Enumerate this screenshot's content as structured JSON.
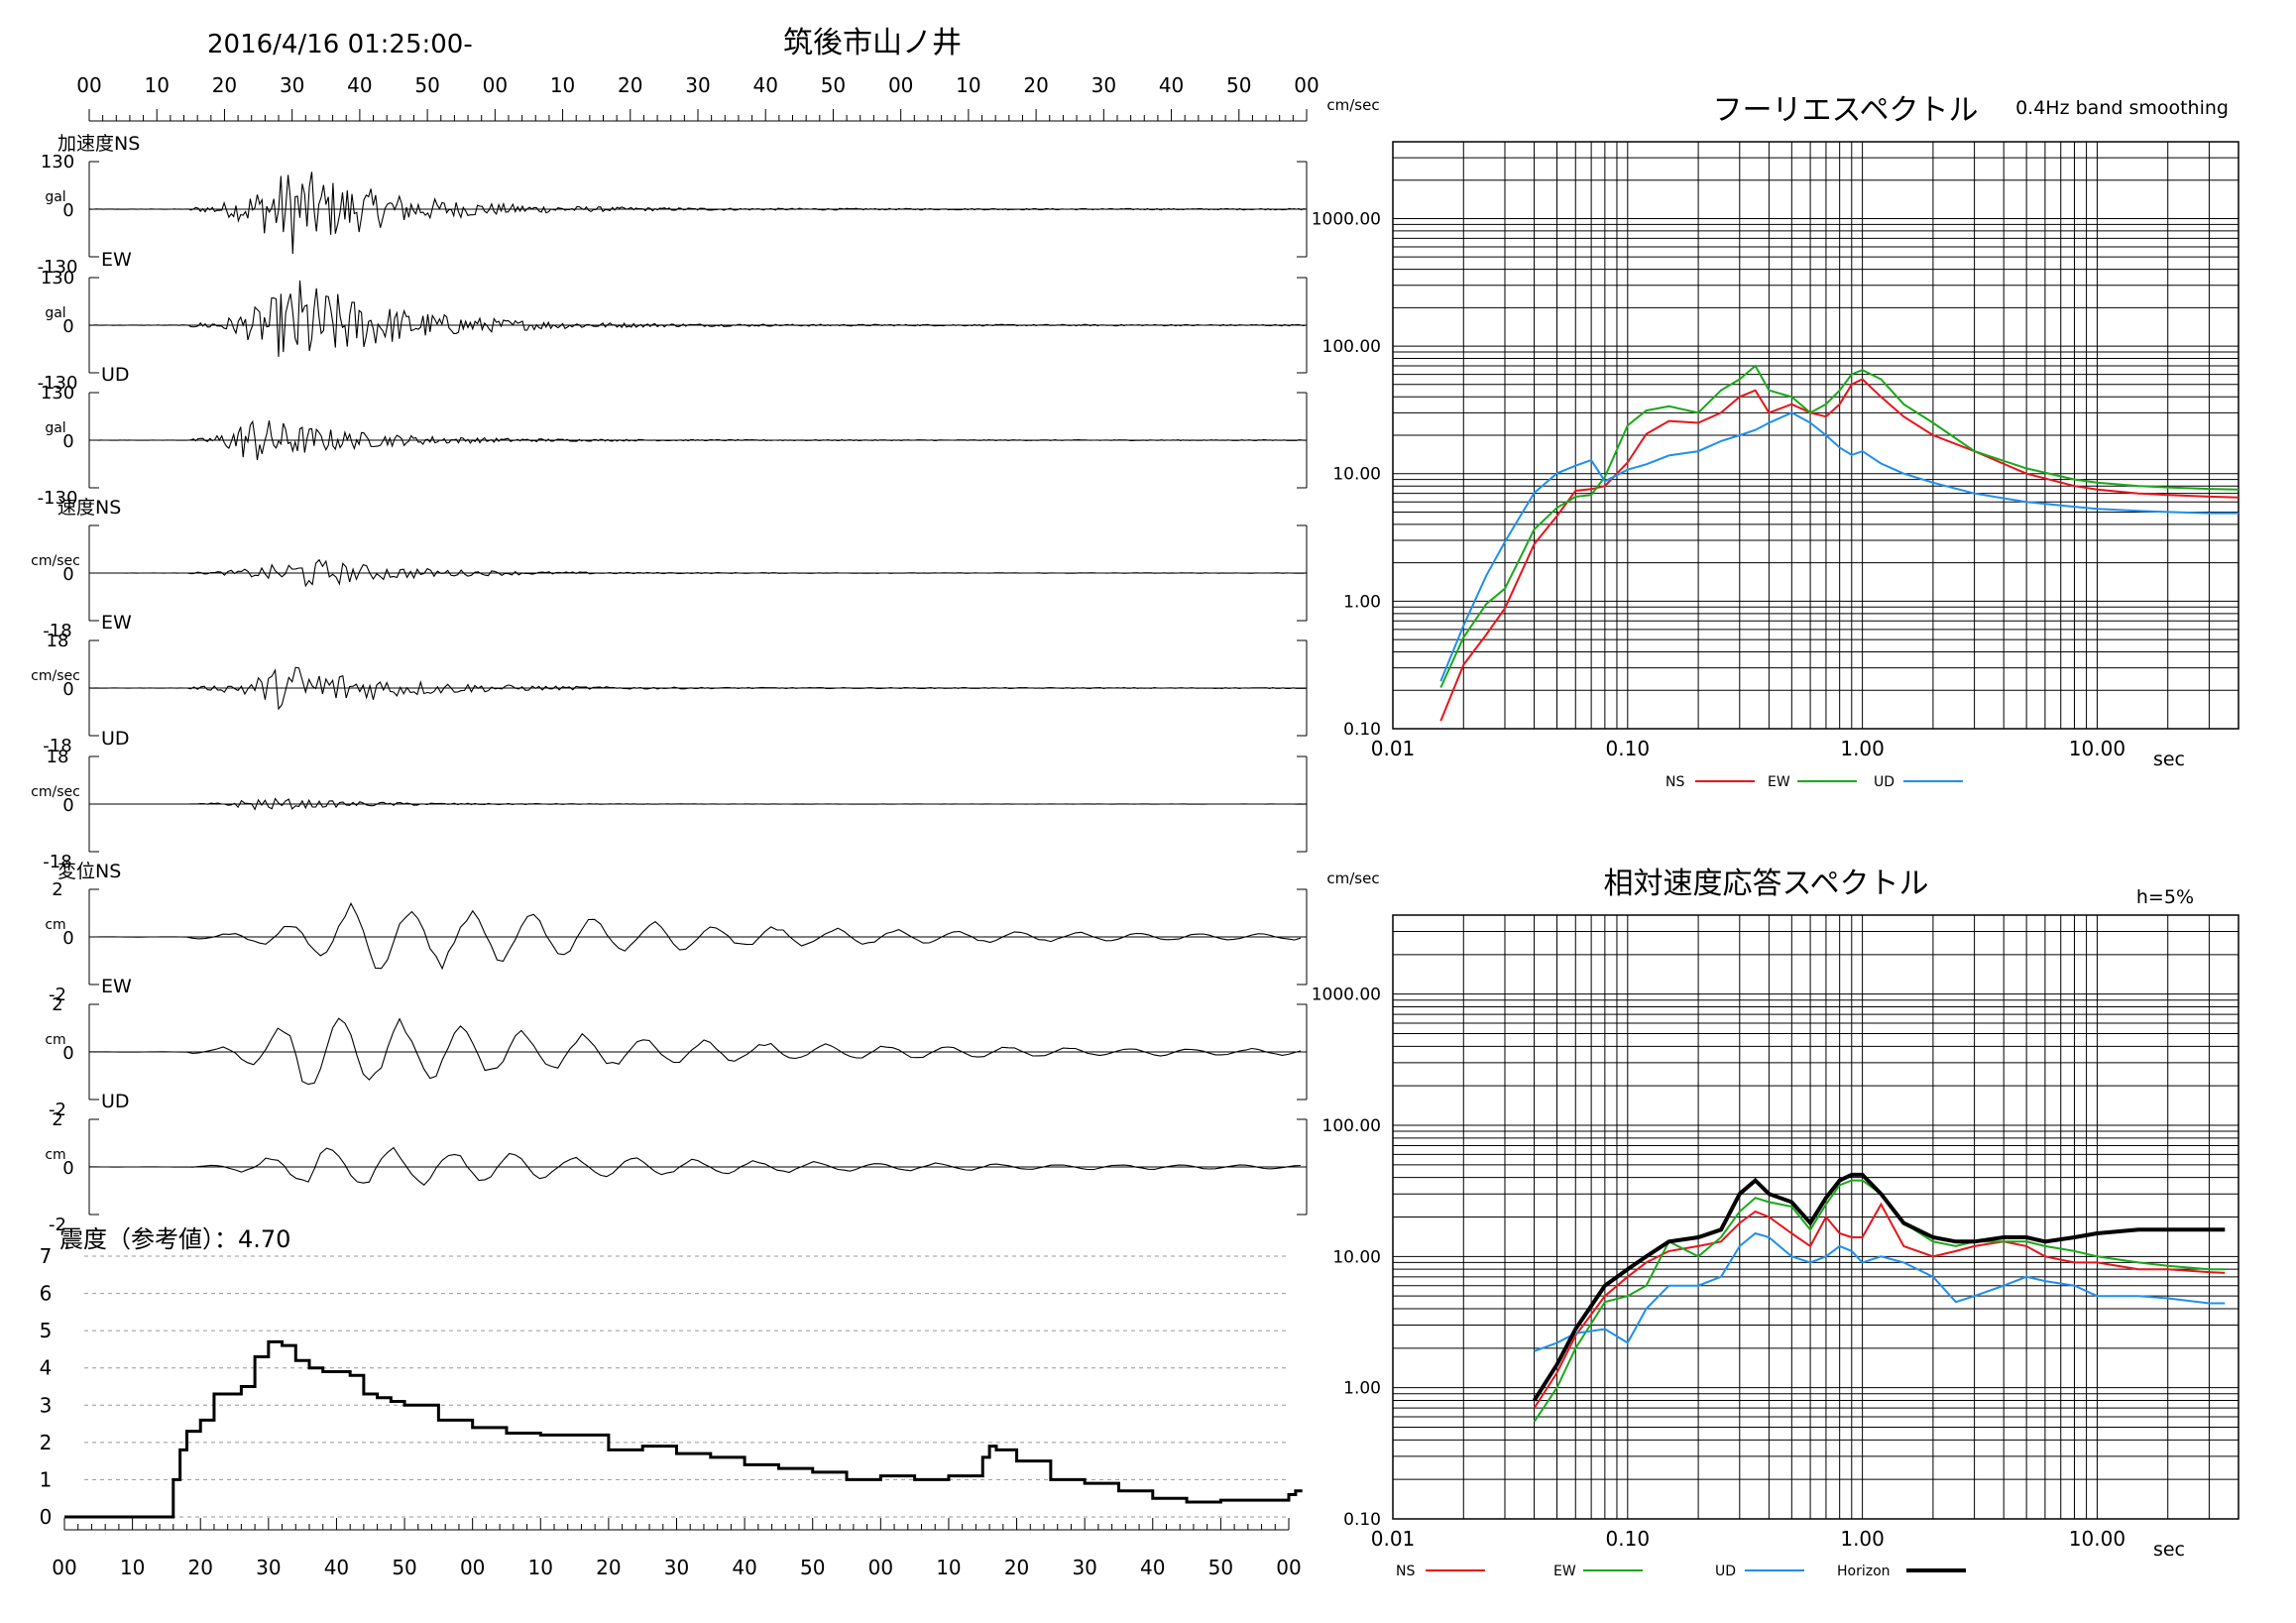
{
  "header": {
    "datetime": "2016/4/16 01:25:00-",
    "station": "筑後市山ノ井"
  },
  "waveforms": {
    "time_ticks": [
      "00",
      "10",
      "20",
      "30",
      "40",
      "50",
      "00",
      "10",
      "20",
      "30",
      "40",
      "50",
      "00",
      "10",
      "20",
      "30",
      "40",
      "50",
      "00"
    ],
    "panels": [
      {
        "group_label": "加速度NS",
        "unit": "gal",
        "max_label": "130",
        "zero_label": "0",
        "min_label": "-130",
        "kind": "acc",
        "amplitude": 1.0,
        "peak_time": 30
      },
      {
        "group_label": "EW",
        "unit": "gal",
        "max_label": "130",
        "zero_label": "0",
        "min_label": "-130",
        "kind": "acc",
        "amplitude": 1.05,
        "peak_time": 31
      },
      {
        "group_label": "UD",
        "unit": "gal",
        "max_label": "130",
        "zero_label": "0",
        "min_label": "-130",
        "kind": "acc",
        "amplitude": 0.55,
        "peak_time": 24
      },
      {
        "group_label": "速度NS",
        "unit": "cm/sec",
        "max_label": "",
        "zero_label": "0",
        "min_label": "-18",
        "kind": "vel",
        "amplitude": 0.35,
        "peak_time": 32
      },
      {
        "group_label": "EW",
        "unit": "cm/sec",
        "max_label": "18",
        "zero_label": "0",
        "min_label": "-18",
        "kind": "vel",
        "amplitude": 0.6,
        "peak_time": 30
      },
      {
        "group_label": "UD",
        "unit": "cm/sec",
        "max_label": "18",
        "zero_label": "0",
        "min_label": "-18",
        "kind": "vel",
        "amplitude": 0.15,
        "peak_time": 25
      },
      {
        "group_label": "変位NS",
        "unit": "cm",
        "max_label": "2",
        "zero_label": "0",
        "min_label": "-2",
        "kind": "disp",
        "amplitude": 0.9,
        "peak_time": 40
      },
      {
        "group_label": "EW",
        "unit": "cm",
        "max_label": "2",
        "zero_label": "0",
        "min_label": "-2",
        "kind": "disp",
        "amplitude": 1.0,
        "peak_time": 31
      },
      {
        "group_label": "UD",
        "unit": "cm",
        "max_label": "2",
        "zero_label": "0",
        "min_label": "-2",
        "kind": "disp",
        "amplitude": 0.6,
        "peak_time": 34
      }
    ]
  },
  "intensity": {
    "title": "震度（参考値）：4.70",
    "y_ticks": [
      "7",
      "6",
      "5",
      "4",
      "3",
      "2",
      "1",
      "0"
    ],
    "x_ticks": [
      "00",
      "10",
      "20",
      "30",
      "40",
      "50",
      "00",
      "10",
      "20",
      "30",
      "40",
      "50",
      "00",
      "10",
      "20",
      "30",
      "40",
      "50",
      "00"
    ]
  },
  "chart_data": [
    {
      "type": "line",
      "title": "フーリエスペクトル",
      "subtitle": "0.4Hz band smoothing",
      "ylabel": "cm/sec",
      "xlabel": "sec",
      "xscale": "log",
      "yscale": "log",
      "xlim": [
        0.01,
        40
      ],
      "ylim": [
        0.1,
        4000
      ],
      "x_tick_labels": [
        "0.01",
        "0.10",
        "1.00",
        "10.00"
      ],
      "y_tick_labels": [
        "1000.00",
        "100.00",
        "10.00",
        "1.00",
        "0.10"
      ],
      "legend": [
        "NS",
        "EW",
        "UD"
      ],
      "series": [
        {
          "name": "NS",
          "color": "#e8141b",
          "x": [
            0.016,
            0.02,
            0.025,
            0.03,
            0.04,
            0.05,
            0.06,
            0.07,
            0.08,
            0.1,
            0.12,
            0.15,
            0.2,
            0.25,
            0.3,
            0.35,
            0.4,
            0.5,
            0.6,
            0.7,
            0.8,
            0.9,
            1.0,
            1.2,
            1.5,
            2,
            3,
            5,
            8,
            10,
            15,
            20,
            30,
            40
          ],
          "y": [
            0.15,
            0.3,
            0.6,
            1.0,
            2.5,
            4,
            6,
            8,
            10,
            15,
            22,
            25,
            25,
            30,
            40,
            45,
            30,
            35,
            30,
            28,
            35,
            50,
            55,
            40,
            28,
            20,
            15,
            10,
            8,
            7.5,
            7,
            6.8,
            6.6,
            6.5
          ]
        },
        {
          "name": "EW",
          "color": "#1aa81a",
          "x": [
            0.016,
            0.02,
            0.025,
            0.03,
            0.04,
            0.05,
            0.06,
            0.07,
            0.08,
            0.1,
            0.12,
            0.15,
            0.2,
            0.25,
            0.3,
            0.35,
            0.4,
            0.5,
            0.6,
            0.7,
            0.8,
            0.9,
            1.0,
            1.2,
            1.5,
            2,
            3,
            5,
            8,
            10,
            15,
            20,
            30,
            40
          ],
          "y": [
            0.2,
            0.5,
            0.9,
            1.5,
            3,
            4.5,
            6,
            8,
            12,
            20,
            25,
            40,
            30,
            45,
            55,
            70,
            45,
            40,
            30,
            35,
            45,
            60,
            65,
            55,
            35,
            25,
            15,
            11,
            9,
            8.5,
            8,
            7.8,
            7.6,
            7.5
          ]
        },
        {
          "name": "UD",
          "color": "#1f8ff0",
          "x": [
            0.016,
            0.02,
            0.025,
            0.03,
            0.04,
            0.05,
            0.06,
            0.07,
            0.08,
            0.1,
            0.12,
            0.15,
            0.2,
            0.25,
            0.3,
            0.35,
            0.4,
            0.5,
            0.6,
            0.7,
            0.8,
            0.9,
            1.0,
            1.2,
            1.5,
            2,
            3,
            5,
            8,
            10,
            15,
            20,
            30,
            40
          ],
          "y": [
            0.3,
            0.7,
            1.5,
            3,
            8,
            10,
            12,
            11,
            10,
            9,
            10,
            12,
            15,
            18,
            20,
            22,
            25,
            30,
            25,
            20,
            16,
            14,
            15,
            12,
            10,
            8.5,
            7,
            6,
            5.5,
            5.3,
            5.1,
            5.0,
            4.9,
            4.9
          ]
        }
      ]
    },
    {
      "type": "line",
      "title": "相対速度応答スペクトル",
      "subtitle": "h=5%",
      "ylabel": "cm/sec",
      "xlabel": "sec",
      "xscale": "log",
      "yscale": "log",
      "xlim": [
        0.01,
        40
      ],
      "ylim": [
        0.1,
        4000
      ],
      "x_tick_labels": [
        "0.01",
        "0.10",
        "1.00",
        "10.00"
      ],
      "y_tick_labels": [
        "1000.00",
        "100.00",
        "10.00",
        "1.00",
        "0.10"
      ],
      "legend": [
        "NS",
        "EW",
        "UD",
        "Horizon"
      ],
      "series": [
        {
          "name": "NS",
          "color": "#e8141b",
          "x": [
            0.04,
            0.05,
            0.06,
            0.08,
            0.1,
            0.12,
            0.15,
            0.2,
            0.25,
            0.3,
            0.35,
            0.4,
            0.5,
            0.6,
            0.7,
            0.8,
            0.9,
            1.0,
            1.2,
            1.5,
            2,
            2.5,
            3,
            4,
            5,
            6,
            8,
            10,
            15,
            20,
            30,
            35
          ],
          "y": [
            0.7,
            1.3,
            2.5,
            5,
            7,
            9,
            11,
            12,
            13,
            18,
            22,
            20,
            15,
            12,
            20,
            15,
            14,
            14,
            25,
            12,
            10,
            11,
            12,
            13,
            12,
            10,
            9,
            9,
            8,
            8,
            7.6,
            7.5
          ]
        },
        {
          "name": "EW",
          "color": "#1aa81a",
          "x": [
            0.04,
            0.05,
            0.06,
            0.08,
            0.1,
            0.12,
            0.15,
            0.2,
            0.25,
            0.3,
            0.35,
            0.4,
            0.5,
            0.6,
            0.7,
            0.8,
            0.9,
            1.0,
            1.2,
            1.5,
            2,
            2.5,
            3,
            4,
            5,
            6,
            8,
            10,
            15,
            20,
            30,
            35
          ],
          "y": [
            0.55,
            1.0,
            2.0,
            4.5,
            5,
            6,
            13,
            10,
            14,
            22,
            28,
            26,
            24,
            16,
            25,
            35,
            38,
            38,
            30,
            18,
            13,
            12,
            13,
            13,
            13,
            12,
            11,
            10,
            9,
            8.5,
            8,
            8
          ]
        },
        {
          "name": "UD",
          "color": "#1f8ff0",
          "x": [
            0.04,
            0.05,
            0.06,
            0.08,
            0.1,
            0.12,
            0.15,
            0.2,
            0.25,
            0.3,
            0.35,
            0.4,
            0.5,
            0.6,
            0.7,
            0.8,
            0.9,
            1.0,
            1.2,
            1.5,
            2,
            2.5,
            3,
            4,
            5,
            6,
            8,
            10,
            15,
            20,
            30,
            35
          ],
          "y": [
            1.9,
            2.2,
            2.6,
            2.8,
            2.2,
            4,
            6,
            6,
            7,
            12,
            15,
            14,
            10,
            9,
            10,
            12,
            11,
            9,
            10,
            9,
            7,
            4.5,
            5,
            6,
            7,
            6.5,
            6,
            5,
            5,
            4.8,
            4.4,
            4.4
          ]
        },
        {
          "name": "Horizon",
          "color": "#000000",
          "x": [
            0.04,
            0.05,
            0.06,
            0.08,
            0.1,
            0.12,
            0.15,
            0.2,
            0.25,
            0.3,
            0.35,
            0.4,
            0.5,
            0.6,
            0.7,
            0.8,
            0.9,
            1.0,
            1.2,
            1.5,
            2,
            2.5,
            3,
            4,
            5,
            6,
            8,
            10,
            15,
            20,
            30,
            35
          ],
          "y": [
            0.8,
            1.5,
            2.8,
            6,
            8,
            10,
            13,
            14,
            16,
            30,
            38,
            30,
            26,
            18,
            28,
            38,
            42,
            42,
            30,
            18,
            14,
            13,
            13,
            14,
            14,
            13,
            14,
            15,
            16,
            16,
            16,
            16
          ]
        }
      ]
    },
    {
      "type": "line",
      "title": "震度（参考値）：4.70",
      "xlabel": "",
      "ylabel": "",
      "ylim": [
        0,
        7
      ],
      "x": [
        0,
        15,
        16,
        17,
        18,
        20,
        22,
        24,
        26,
        28,
        30,
        32,
        34,
        36,
        38,
        40,
        42,
        44,
        46,
        48,
        50,
        55,
        60,
        65,
        70,
        80,
        85,
        90,
        95,
        100,
        105,
        110,
        115,
        120,
        125,
        130,
        135,
        136,
        137,
        140,
        145,
        150,
        155,
        160,
        165,
        170,
        175,
        180,
        181,
        182
      ],
      "values": [
        0,
        0,
        1,
        1.8,
        2.3,
        2.6,
        3.3,
        3.3,
        3.5,
        4.3,
        4.7,
        4.6,
        4.2,
        4.0,
        3.9,
        3.9,
        3.8,
        3.3,
        3.2,
        3.1,
        3.0,
        2.6,
        2.4,
        2.25,
        2.2,
        1.8,
        1.9,
        1.7,
        1.6,
        1.4,
        1.3,
        1.2,
        1.0,
        1.1,
        1.0,
        1.1,
        1.6,
        1.9,
        1.8,
        1.5,
        1.0,
        0.9,
        0.7,
        0.5,
        0.4,
        0.45,
        0.45,
        0.6,
        0.7,
        0.7
      ]
    }
  ]
}
